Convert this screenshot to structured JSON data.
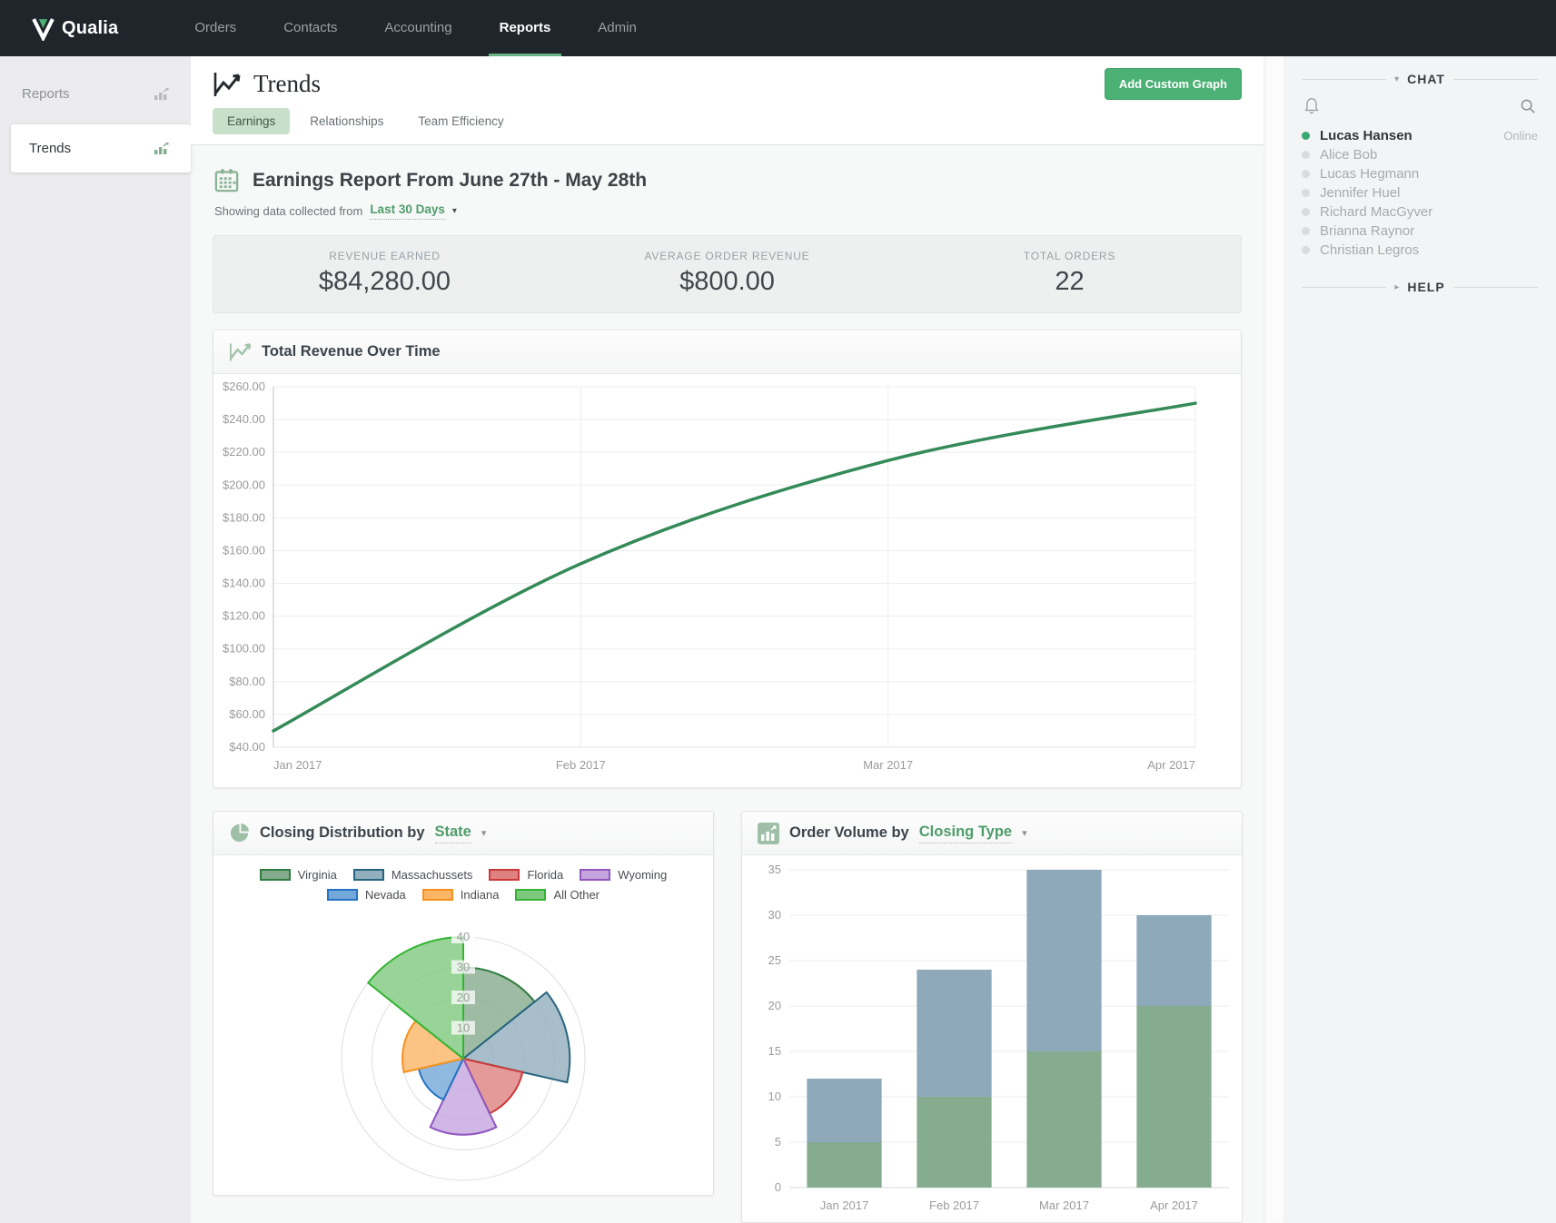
{
  "navbar": {
    "brand": "Qualia",
    "items": [
      "Orders",
      "Contacts",
      "Accounting",
      "Reports",
      "Admin"
    ],
    "active_item": "Reports"
  },
  "sidebar": {
    "items": [
      {
        "label": "Reports",
        "active": false
      },
      {
        "label": "Trends",
        "active": true
      }
    ]
  },
  "page": {
    "title": "Trends",
    "add_graph_button": "Add Custom Graph",
    "tabs": [
      {
        "label": "Earnings",
        "active": true
      },
      {
        "label": "Relationships",
        "active": false
      },
      {
        "label": "Team Efficiency",
        "active": false
      }
    ]
  },
  "report": {
    "heading": "Earnings Report From June 27th - May 28th",
    "showing_prefix": "Showing data collected from",
    "date_range": "Last 30 Days"
  },
  "stats": [
    {
      "label": "REVENUE EARNED",
      "value": "$84,280.00"
    },
    {
      "label": "AVERAGE ORDER REVENUE",
      "value": "$800.00"
    },
    {
      "label": "TOTAL ORDERS",
      "value": "22"
    }
  ],
  "cards": {
    "revenue_title": "Total Revenue Over Time",
    "closing_title": "Closing Distribution by",
    "closing_selector": "State",
    "volume_title": "Order Volume by",
    "volume_selector": "Closing Type"
  },
  "chat": {
    "title": "CHAT",
    "help_title": "HELP",
    "users": [
      {
        "name": "Lucas Hansen",
        "online": true,
        "status": "Online"
      },
      {
        "name": "Alice Bob",
        "online": false
      },
      {
        "name": "Lucas Hegmann",
        "online": false
      },
      {
        "name": "Jennifer Huel",
        "online": false
      },
      {
        "name": "Richard MacGyver",
        "online": false
      },
      {
        "name": "Brianna Raynor",
        "online": false
      },
      {
        "name": "Christian Legros",
        "online": false
      }
    ]
  },
  "colors": {
    "accent_green": "#4cb175",
    "link_green": "#4f9d6b",
    "line_green": "#348a58",
    "navbar_bg": "#20252c",
    "bar_green": "#86ac90",
    "bar_blue": "#8ea9b9"
  },
  "chart_data": [
    {
      "type": "line",
      "title": "Total Revenue Over Time",
      "x": [
        "Jan 2017",
        "Feb 2017",
        "Mar 2017",
        "Apr 2017"
      ],
      "values": [
        50,
        152,
        215,
        250
      ],
      "ylim": [
        40,
        260
      ],
      "ytick_step": 20,
      "ytick_format": "$#.00",
      "line_color": "#348a58",
      "grid": true,
      "legend": false
    },
    {
      "type": "pie",
      "variant": "polar_area",
      "title": "Closing Distribution by State",
      "categories": [
        "Virginia",
        "Massachussets",
        "Florida",
        "Wyoming",
        "Nevada",
        "Indiana",
        "All Other"
      ],
      "values": [
        30,
        35,
        20,
        25,
        15,
        20,
        40
      ],
      "rlim": [
        0,
        40
      ],
      "rticks": [
        10,
        20,
        30,
        40
      ],
      "fill_colors": [
        "#84ab8c",
        "#92afbe",
        "#df8181",
        "#c6a5de",
        "#74a8d8",
        "#fab567",
        "#7ec87d"
      ],
      "border_colors": [
        "#2f7d3f",
        "#27647f",
        "#ca3a3a",
        "#9056c0",
        "#2373c2",
        "#f5921d",
        "#33b433"
      ],
      "legend_position": "top"
    },
    {
      "type": "bar",
      "stacked": true,
      "title": "Order Volume by Closing Type",
      "categories": [
        "Jan 2017",
        "Feb 2017",
        "Mar 2017",
        "Apr 2017"
      ],
      "series": [
        {
          "name": "green-series",
          "values": [
            5,
            10,
            15,
            20
          ],
          "color": "#86ac90"
        },
        {
          "name": "blue-series",
          "values": [
            7,
            14,
            20,
            10
          ],
          "color": "#8ea9b9"
        }
      ],
      "totals": [
        12,
        24,
        35,
        30
      ],
      "ylim": [
        0,
        35
      ],
      "ytick_step": 5,
      "grid": true,
      "legend": false
    }
  ]
}
